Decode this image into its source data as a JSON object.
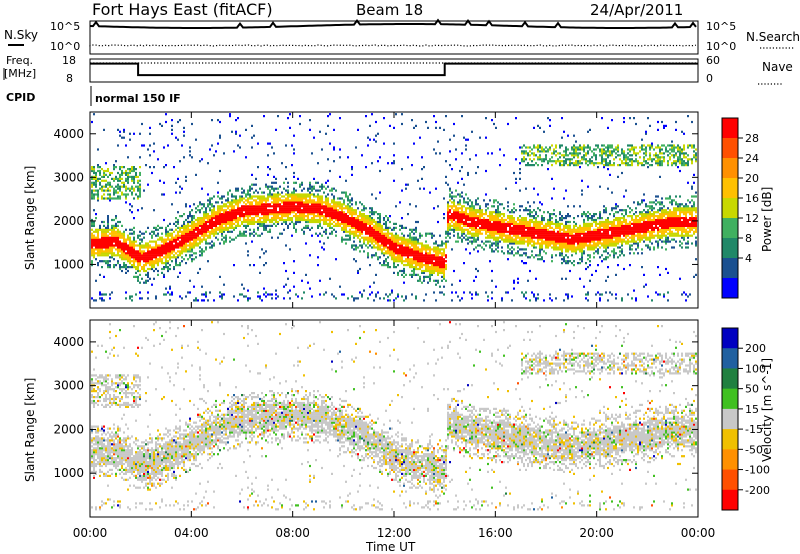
{
  "header": {
    "title": "Fort Hays East (fitACF)",
    "beam": "Beam 18",
    "date": "24/Apr/2011"
  },
  "noise_panel": {
    "left_label": "N.Sky",
    "right_label": "N.Search",
    "left_ticks": [
      "10^5",
      "10^0"
    ],
    "right_ticks": [
      "10^5",
      "10^0"
    ]
  },
  "freq_panel": {
    "left_label_line1": "Freq.",
    "left_label_line2": "[MHz]",
    "right_label": "Nave",
    "left_ticks": [
      "18",
      "8"
    ],
    "right_ticks": [
      "60",
      "0"
    ]
  },
  "cpid_panel": {
    "label": "CPID",
    "mode": "normal 150 IF"
  },
  "x_axis": {
    "label": "Time UT",
    "ticks": [
      "00:00",
      "04:00",
      "08:00",
      "12:00",
      "16:00",
      "20:00",
      "00:00"
    ]
  },
  "power_panel": {
    "ylabel": "Slant Range [km]",
    "yticks": [
      "1000",
      "2000",
      "3000",
      "4000"
    ],
    "colorbar_label": "Power [dB]",
    "colorbar_ticks": [
      "28",
      "24",
      "20",
      "16",
      "12",
      "8",
      "4"
    ],
    "colors": [
      "#ff0000",
      "#ff5000",
      "#ff9000",
      "#ffc000",
      "#c8d800",
      "#40b060",
      "#208868",
      "#1a5090",
      "#0000ff"
    ]
  },
  "velocity_panel": {
    "ylabel": "Slant Range [km]",
    "yticks": [
      "1000",
      "2000",
      "3000",
      "4000"
    ],
    "colorbar_label": "Velocity [m s^-1]",
    "colorbar_ticks": [
      "200",
      "100",
      "50",
      "15",
      "-15",
      "-50",
      "-100",
      "-200"
    ],
    "colors": [
      "#0000c0",
      "#2060a0",
      "#208040",
      "#40c020",
      "#c8c8c8",
      "#f0c000",
      "#ff9000",
      "#ff5000",
      "#ff0000"
    ]
  },
  "chart_data": [
    {
      "type": "line",
      "title": "N.Sky / N.Search",
      "x": [
        0,
        1,
        2,
        3,
        4,
        5,
        6,
        7,
        8,
        9,
        10,
        11,
        12,
        13,
        14,
        15,
        16,
        17,
        18,
        19,
        20,
        21,
        22,
        23,
        24
      ],
      "ylim": [
        "10^0",
        "10^5"
      ],
      "notes": "noise sky level near top, search level near bottom"
    },
    {
      "type": "line",
      "title": "Freq. [MHz] / Nave",
      "x": [
        0,
        1.9,
        1.9,
        14,
        14,
        24
      ],
      "series": [
        {
          "name": "Freq.",
          "values": [
            16,
            16,
            11,
            11,
            16,
            16
          ]
        }
      ],
      "ylim": [
        8,
        18
      ]
    },
    {
      "type": "heatmap",
      "title": "Power [dB]",
      "xlabel": "Time UT",
      "ylabel": "Slant Range [km]",
      "x_range_hours": [
        0,
        24
      ],
      "ylim": [
        0,
        4500
      ],
      "color_scale": [
        4,
        8,
        12,
        16,
        20,
        24,
        28
      ],
      "main_echo_band_km": {
        "x": [
          0,
          1,
          2,
          3,
          4,
          5,
          6,
          7,
          8,
          9,
          10,
          11,
          12,
          13,
          14,
          14.1,
          15,
          16,
          17,
          18,
          19,
          20,
          21,
          22,
          23,
          24
        ],
        "values": [
          1500,
          1550,
          1150,
          1400,
          1700,
          2050,
          2250,
          2300,
          2350,
          2300,
          2100,
          1800,
          1400,
          1200,
          1050,
          2200,
          2000,
          1900,
          1800,
          1700,
          1600,
          1700,
          1800,
          1900,
          2000,
          2000
        ]
      }
    },
    {
      "type": "heatmap",
      "title": "Velocity [m s^-1]",
      "xlabel": "Time UT",
      "ylabel": "Slant Range [km]",
      "x_range_hours": [
        0,
        24
      ],
      "ylim": [
        0,
        4500
      ],
      "color_scale": [
        -200,
        -100,
        -50,
        -15,
        15,
        50,
        100,
        200
      ]
    }
  ]
}
